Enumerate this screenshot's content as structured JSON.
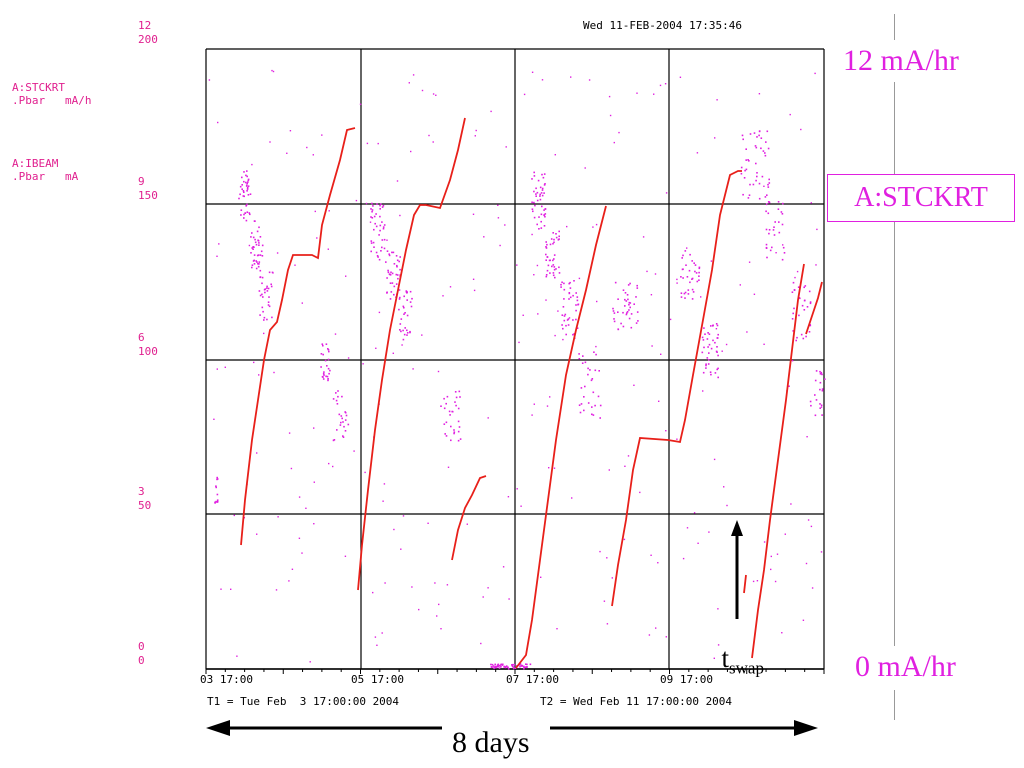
{
  "header": {
    "timestamp": "Wed 11-FEB-2004 17:35:46"
  },
  "left_labels": {
    "stckrt_line1": "A:STCKRT",
    "stckrt_line2": ".Pbar   mA/h",
    "ibeam_line1": "A:IBEAM",
    "ibeam_line2": ".Pbar   mA"
  },
  "y_axis_stckrt": {
    "ticks": [
      "12",
      "9",
      "6",
      "3",
      "0"
    ]
  },
  "y_axis_ibeam": {
    "ticks": [
      "200",
      "150",
      "100",
      "50",
      "0"
    ]
  },
  "x_axis": {
    "ticks": [
      "03 17:00",
      "05 17:00",
      "07 17:00",
      "09 17:00"
    ],
    "t1": "T1 = Tue Feb  3 17:00:00 2004",
    "t2": "T2 = Wed Feb 11 17:00:00 2004"
  },
  "annotations": {
    "top_right": "12 mA/hr",
    "bottom_right": "0 mA/hr",
    "box_label": "A:STCKRT",
    "tswap_main": "t",
    "tswap_sub": "swap",
    "span_label": "8 days"
  },
  "colors": {
    "stckrt": "#e020e0",
    "ibeam": "#e8201a",
    "grid": "#000000",
    "label": "#e0208f"
  },
  "chart_data": {
    "type": "scatter",
    "x_range": [
      "03 17:00",
      "11 17:00"
    ],
    "series": [
      {
        "name": "A:IBEAM .Pbar mA",
        "axis": "right-scale 0-200",
        "style": "stepped line"
      },
      {
        "name": "A:STCKRT .Pbar mA/h",
        "axis": "left-scale 0-12",
        "style": "points"
      }
    ],
    "ylim_stckrt": [
      0,
      12
    ],
    "ylim_ibeam": [
      0,
      200
    ],
    "grid": true
  }
}
